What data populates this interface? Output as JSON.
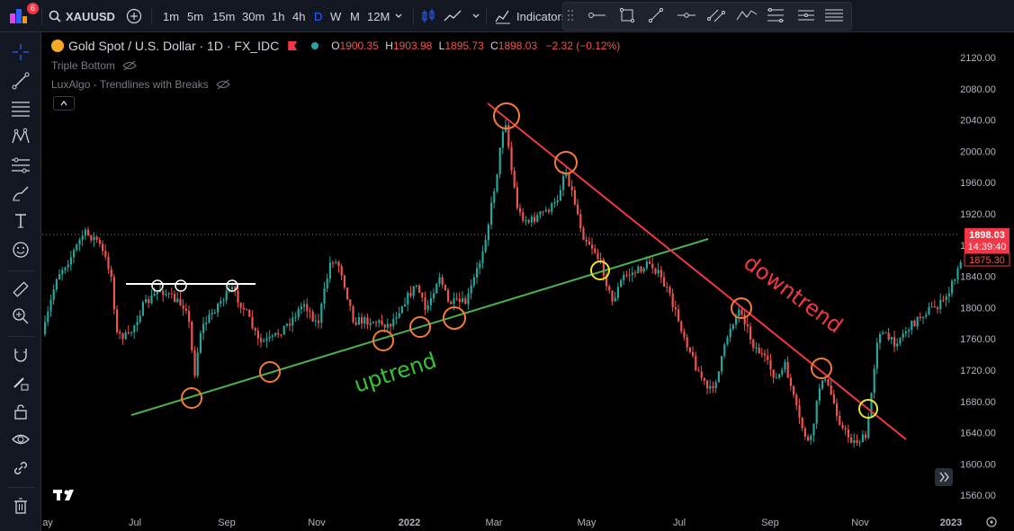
{
  "toolbar": {
    "notification_count": "6",
    "symbol": "XAUUSD",
    "intervals": [
      "1m",
      "5m",
      "15m",
      "30m",
      "1h",
      "4h",
      "D",
      "W",
      "M",
      "12M"
    ],
    "active_interval": "D",
    "indicators_label": "Indicators"
  },
  "legend": {
    "title": "Gold Spot / U.S. Dollar · 1D · FX_IDC",
    "open_label": "O",
    "open": "1900.35",
    "high_label": "H",
    "high": "1903.98",
    "low_label": "L",
    "low": "1895.73",
    "close_label": "C",
    "close": "1898.03",
    "change": "−2.32 (−0.12%)",
    "indicator1": "Triple Bottom",
    "indicator2": "LuxAlgo - Trendlines with Breaks"
  },
  "price_axis": {
    "ticks": [
      "2120.00",
      "2080.00",
      "2040.00",
      "2000.00",
      "1960.00",
      "1920.00",
      "1880.00",
      "1840.00",
      "1800.00",
      "1760.00",
      "1720.00",
      "1680.00",
      "1640.00",
      "1600.00",
      "1560.00"
    ],
    "last_price": "1898.03",
    "countdown": "14:39:40",
    "pattern_price": "1875.30"
  },
  "time_axis": {
    "labels": [
      "ay",
      "Jul",
      "Sep",
      "Nov",
      "2022",
      "Mar",
      "May",
      "Jul",
      "Sep",
      "Nov",
      "2023"
    ]
  },
  "annotations": {
    "uptrend_label": "uptrend",
    "downtrend_label": "downtrend"
  },
  "colors": {
    "background": "#000000",
    "bull": "#26a69a",
    "bear": "#ef5350",
    "uptrend_line": "#4caf50",
    "downtrend_line": "#f23645",
    "orange_circle": "#f57c38",
    "yellow_circle": "#e6e62e",
    "toolbar_bg": "#131722"
  }
}
